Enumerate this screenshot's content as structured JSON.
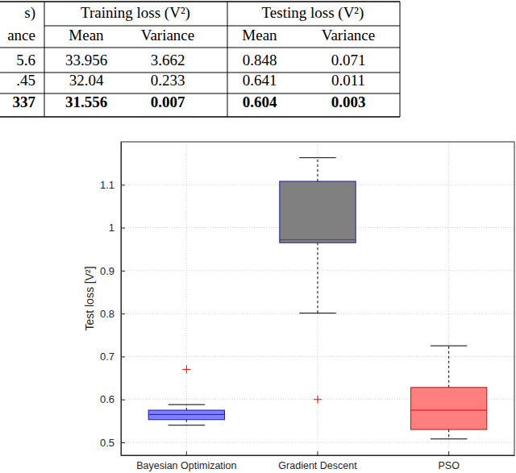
{
  "table": {
    "header": [
      {
        "cells": [
          "s)",
          "Training loss (V²)",
          "Testing loss (V²)"
        ]
      },
      {
        "cells": [
          "ance",
          "Mean",
          "Variance",
          "Mean",
          "Variance"
        ]
      }
    ],
    "rows": [
      {
        "cells": [
          "5.6",
          "33.956",
          "3.662",
          "0.848",
          "0.071"
        ]
      },
      {
        "cells": [
          ".45",
          "32.04",
          "0.233",
          "0.641",
          "0.011"
        ]
      },
      {
        "cells": [
          "337",
          "31.556",
          "0.007",
          "0.604",
          "0.003"
        ],
        "bold": true
      }
    ]
  },
  "chart_data": {
    "type": "box",
    "y_label": "Test loss [V²]",
    "categories": [
      "Bayesian Optimization",
      "Gradient Descent",
      "PSO"
    ],
    "boxes": [
      {
        "whisker_low": 0.54,
        "q1": 0.553,
        "median": 0.565,
        "q3": 0.575,
        "whisker_high": 0.588,
        "outliers": [
          0.67
        ]
      },
      {
        "whisker_low": 0.801,
        "q1": 0.965,
        "median": 0.972,
        "q3": 1.108,
        "whisker_high": 1.163,
        "outliers": [
          0.6
        ]
      },
      {
        "whisker_low": 0.508,
        "q1": 0.53,
        "median": 0.575,
        "q3": 0.628,
        "whisker_high": 0.725,
        "outliers": []
      }
    ],
    "colors": [
      "#7f7fff",
      "#808080",
      "#ff7f7f"
    ],
    "ylim": [
      0.47,
      1.2
    ],
    "yticks": [
      0.5,
      0.6,
      0.7,
      0.8,
      0.9,
      1,
      1.1
    ],
    "grid": true
  }
}
